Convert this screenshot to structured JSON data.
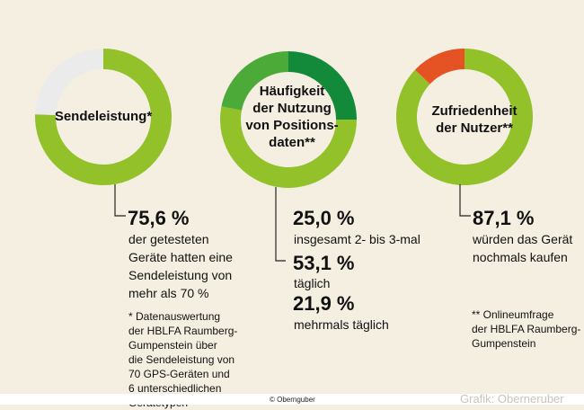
{
  "colors": {
    "lime": "#92c12a",
    "grey": "#ebebeb",
    "mid_green": "#4caa38",
    "dark_green": "#128a3a",
    "red": "#e55325",
    "background": "#f5efe2"
  },
  "chart_data": [
    {
      "type": "pie",
      "title": "Sendeleistung*",
      "slices": [
        {
          "label": "Sendeleistung von mehr als 70 %",
          "value": 75.6,
          "color": "#92c12a"
        },
        {
          "label": "",
          "value": 24.4,
          "color": "#ebebeb"
        }
      ]
    },
    {
      "type": "pie",
      "title": "Häufigkeit der Nutzung von Positionsdaten**",
      "slices": [
        {
          "label": "insgesamt 2- bis 3-mal",
          "value": 25.0,
          "color": "#128a3a"
        },
        {
          "label": "täglich",
          "value": 53.1,
          "color": "#92c12a"
        },
        {
          "label": "mehrmals täglich",
          "value": 21.9,
          "color": "#4caa38"
        }
      ]
    },
    {
      "type": "pie",
      "title": "Zufriedenheit der Nutzer**",
      "slices": [
        {
          "label": "würden das Gerät nochmals kaufen",
          "value": 87.1,
          "color": "#92c12a"
        },
        {
          "label": "",
          "value": 12.9,
          "color": "#e55325"
        }
      ]
    }
  ],
  "text": {
    "c1_title": "Sendeleistung*",
    "c2_title_l1": "Häufigkeit",
    "c2_title_l2": "der Nutzung",
    "c2_title_l3": "von Positions-",
    "c2_title_l4": "daten**",
    "c3_title_l1": "Zufriedenheit",
    "c3_title_l2": "der Nutzer**",
    "v1": "75,6 %",
    "d1_l1": "der getesteten",
    "d1_l2": "Geräte hatten eine",
    "d1_l3": "Sendeleistung von",
    "d1_l4": "mehr als 70 %",
    "n1_l1": "* Datenauswertung",
    "n1_l2": "der HBLFA Raumberg-",
    "n1_l3": "Gumpenstein über",
    "n1_l4": "die Sendeleistung von",
    "n1_l5": "70 GPS-Geräten und",
    "n1_l6": "6 unterschiedlichen",
    "n1_l7": "Gerätetypen",
    "v2a": "25,0 %",
    "d2a": "insgesamt 2- bis 3-mal",
    "v2b": "53,1 %",
    "d2b": "täglich",
    "v2c": "21,9 %",
    "d2c": "mehrmals täglich",
    "v3": "87,1 %",
    "d3_l1": "würden das Gerät",
    "d3_l2": "nochmals kaufen",
    "n2_l1": "** Onlineumfrage",
    "n2_l2": "der HBLFA Raumberg-",
    "n2_l3": "Gumpenstein",
    "copyright": "© Obernguber",
    "credit": "Grafik: Oberneruber"
  }
}
